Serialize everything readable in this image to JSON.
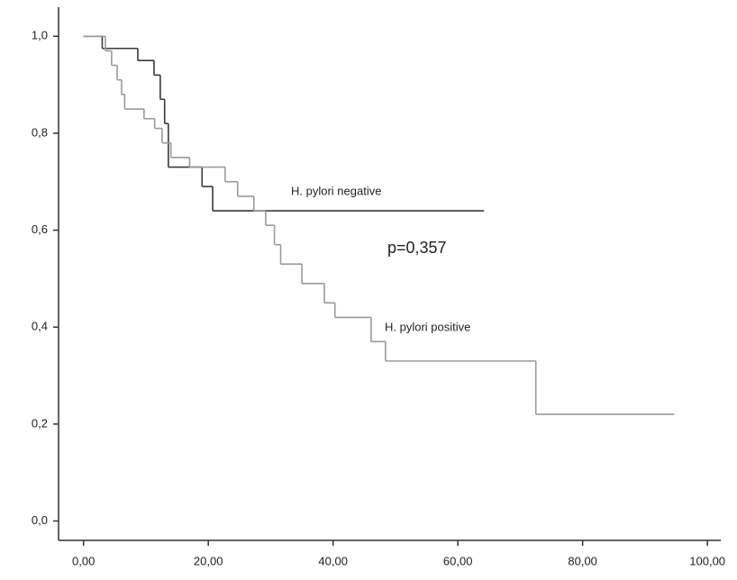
{
  "chart_data": {
    "type": "step",
    "annotation": "p=0,357",
    "xlim": [
      -4,
      102
    ],
    "ylim": [
      -0.04,
      1.06
    ],
    "xticks": [
      {
        "value": 0,
        "label": "0,00"
      },
      {
        "value": 20,
        "label": "20,00"
      },
      {
        "value": 40,
        "label": "40,00"
      },
      {
        "value": 60,
        "label": "60,00"
      },
      {
        "value": 80,
        "label": "80,00"
      },
      {
        "value": 100,
        "label": "100,00"
      }
    ],
    "yticks": [
      {
        "value": 0,
        "label": "0,0"
      },
      {
        "value": 0.2,
        "label": "0,2"
      },
      {
        "value": 0.4,
        "label": "0,4"
      },
      {
        "value": 0.6,
        "label": "0,6"
      },
      {
        "value": 0.8,
        "label": "0,8"
      },
      {
        "value": 1,
        "label": "1,0"
      }
    ],
    "series": [
      {
        "name": "H. pylori negative",
        "color": "#3a3a3a",
        "x": [
          0,
          3,
          8.7,
          11.3,
          12.3,
          13,
          13.6,
          19,
          20.7,
          64.2
        ],
        "values": [
          1,
          0.975,
          0.95,
          0.92,
          0.87,
          0.82,
          0.73,
          0.69,
          0.64,
          0.64
        ]
      },
      {
        "name": "H. pylori positive",
        "color": "#9a9a9a",
        "x": [
          0,
          3.5,
          4.5,
          5.4,
          6.1,
          6.6,
          9.7,
          11.4,
          12.6,
          14,
          17,
          22.7,
          24.7,
          27.3,
          29.2,
          30.6,
          31.6,
          35,
          38.6,
          40.3,
          46.1,
          48.4,
          72.5,
          94.7
        ],
        "values": [
          1,
          0.97,
          0.94,
          0.91,
          0.88,
          0.85,
          0.83,
          0.81,
          0.78,
          0.75,
          0.73,
          0.7,
          0.67,
          0.64,
          0.61,
          0.57,
          0.53,
          0.49,
          0.45,
          0.42,
          0.37,
          0.33,
          0.22,
          0.22
        ]
      }
    ]
  }
}
